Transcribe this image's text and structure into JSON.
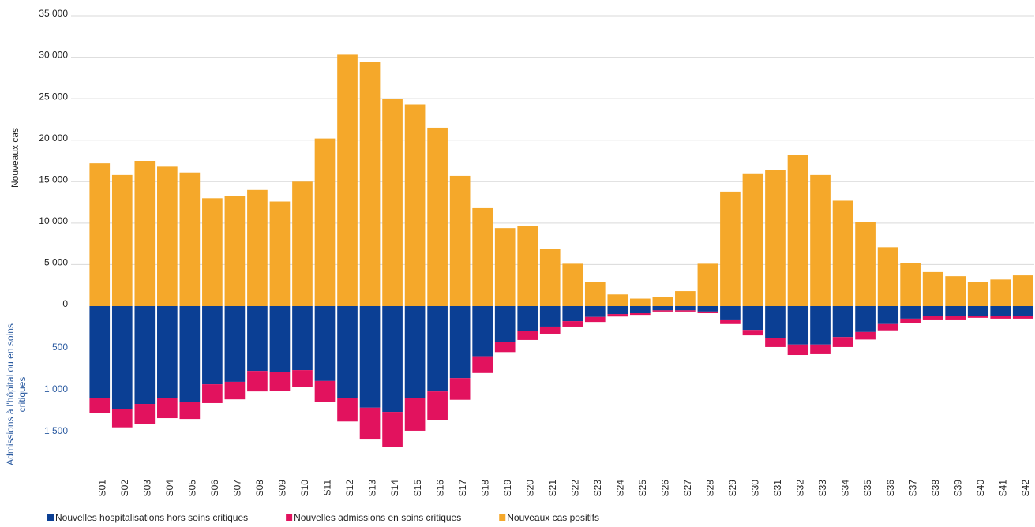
{
  "chart_data": {
    "type": "bar",
    "ylabel": "Nouveaux cas",
    "y2label": [
      "Admissions à l'hôpital ou en soins",
      "critiques"
    ],
    "categories": [
      "S01",
      "S02",
      "S03",
      "S04",
      "S05",
      "S06",
      "S07",
      "S08",
      "S09",
      "S10",
      "S11",
      "S12",
      "S13",
      "S14",
      "S15",
      "S16",
      "S17",
      "S18",
      "S19",
      "S20",
      "S21",
      "S22",
      "S23",
      "S24",
      "S25",
      "S26",
      "S27",
      "S28",
      "S29",
      "S30",
      "S31",
      "S32",
      "S33",
      "S34",
      "S35",
      "S36",
      "S37",
      "S38",
      "S39",
      "S40",
      "S41",
      "S42"
    ],
    "series": [
      {
        "name": "Nouvelles hospitalisations hors soins critiques",
        "color": "#0b3f94",
        "axis": "y2",
        "values": [
          1100,
          1230,
          1170,
          1100,
          1150,
          935,
          905,
          775,
          785,
          765,
          895,
          1095,
          1215,
          1265,
          1095,
          1020,
          860,
          600,
          425,
          300,
          245,
          180,
          130,
          95,
          85,
          50,
          50,
          65,
          160,
          285,
          380,
          460,
          460,
          370,
          310,
          215,
          150,
          115,
          120,
          115,
          120,
          120
        ]
      },
      {
        "name": "Nouvelles admissions en soins critiques",
        "color": "#e2125e",
        "axis": "y2",
        "values": [
          180,
          220,
          240,
          240,
          200,
          225,
          210,
          245,
          225,
          205,
          255,
          285,
          380,
          415,
          395,
          340,
          260,
          200,
          125,
          105,
          85,
          65,
          60,
          30,
          20,
          15,
          15,
          20,
          55,
          65,
          110,
          125,
          115,
          120,
          90,
          75,
          50,
          45,
          40,
          25,
          30,
          30
        ]
      },
      {
        "name": "Nouveaux cas positifs",
        "color": "#f5a82a",
        "values": [
          17200,
          15800,
          17500,
          16800,
          16100,
          13000,
          13300,
          14000,
          12600,
          15000,
          20200,
          30300,
          29400,
          25000,
          24300,
          21500,
          15700,
          11800,
          9400,
          9700,
          6900,
          5100,
          2900,
          1400,
          900,
          1100,
          1800,
          5100,
          13800,
          16000,
          16400,
          18200,
          15800,
          12700,
          10100,
          7100,
          5200,
          4100,
          3600,
          2900,
          3200,
          3700
        ]
      }
    ],
    "ylim": [
      0,
      35000
    ],
    "yticks": [
      0,
      {
        "value": 5000,
        "label": "5 000"
      },
      {
        "value": 10000,
        "label": "10 000"
      },
      {
        "value": 15000,
        "label": "15 000"
      },
      {
        "value": 20000,
        "label": "20 000"
      },
      {
        "value": 25000,
        "label": "25 000"
      },
      {
        "value": 30000,
        "label": "30 000"
      },
      {
        "value": 35000,
        "label": "35 000"
      }
    ],
    "y2lim": [
      0,
      2000
    ],
    "y2ticks": [
      500,
      {
        "value": 1000,
        "label": "1 000"
      },
      {
        "value": 1500,
        "label": "1 500"
      }
    ],
    "grid": true
  }
}
